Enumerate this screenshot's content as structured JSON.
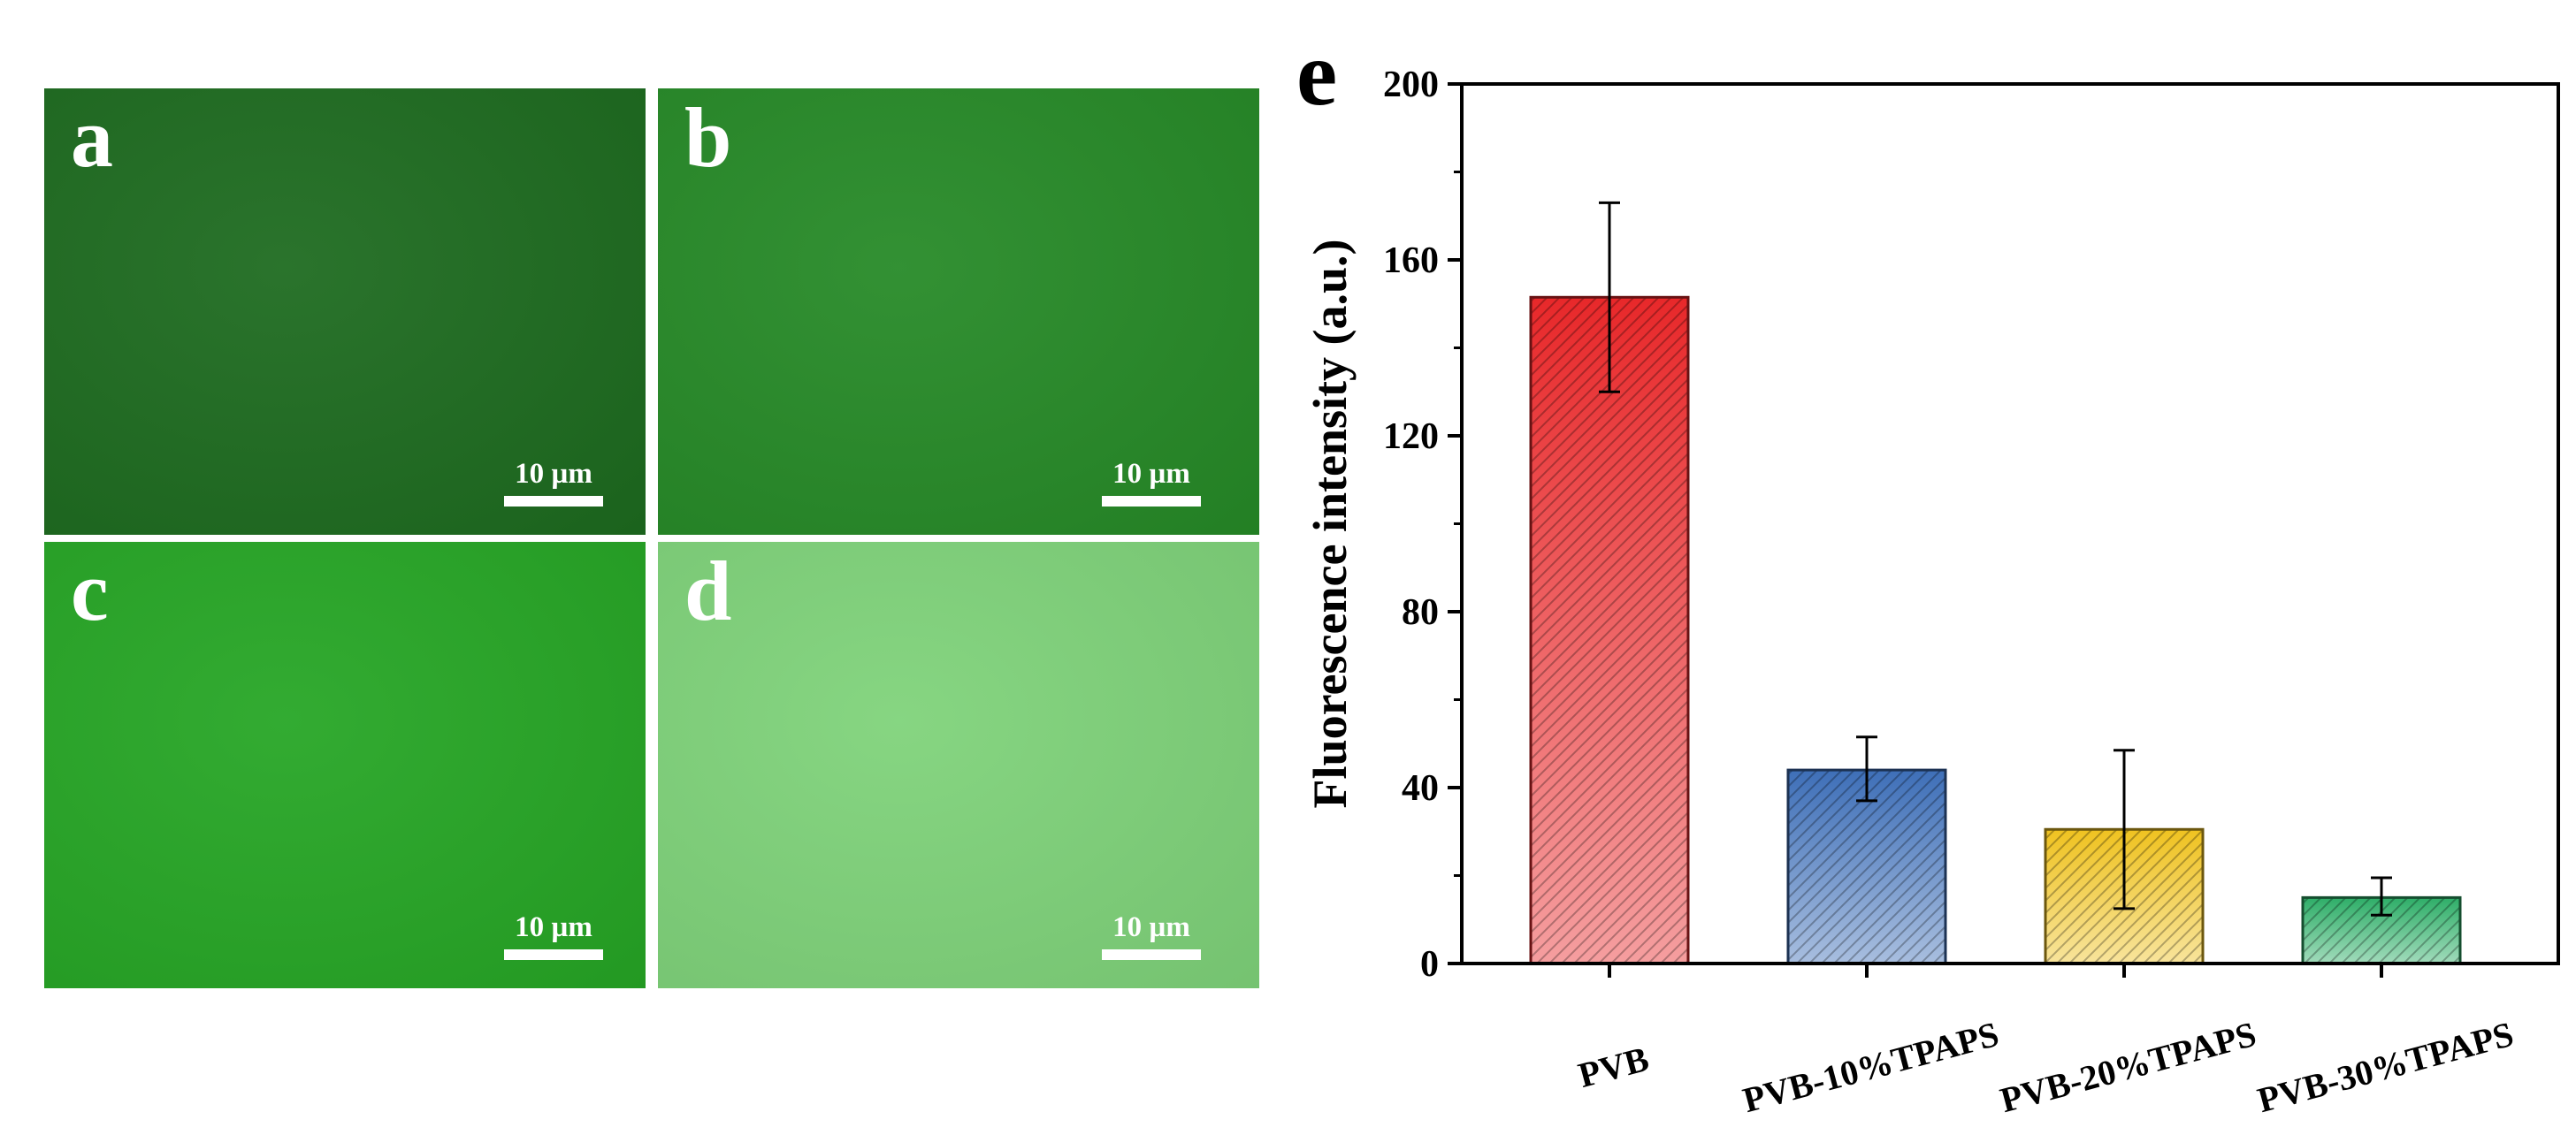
{
  "panels": [
    {
      "letter": "a",
      "scale_label": "10 µm",
      "color": "#1d6b1f"
    },
    {
      "letter": "b",
      "scale_label": "10 µm",
      "color": "#268a27"
    },
    {
      "letter": "c",
      "scale_label": "10 µm",
      "color": "#26a625"
    },
    {
      "letter": "d",
      "scale_label": "10 µm",
      "color": "#7fd37a"
    }
  ],
  "chart_data": {
    "type": "bar",
    "panel_label": "e",
    "categories": [
      "PVB",
      "PVB-10%TPAPS",
      "PVB-20%TPAPS",
      "PVB-30%TPAPS"
    ],
    "values": [
      151.5,
      44,
      30.5,
      15
    ],
    "errors_upper": [
      173,
      51.5,
      48.5,
      19.5
    ],
    "errors_lower": [
      130,
      37,
      12.5,
      11
    ],
    "colors": [
      "#e8282a",
      "#3e6fb8",
      "#efc220",
      "#2eae68"
    ],
    "ylabel": "Fluorescence intensity (a.u.)",
    "xlabel": "",
    "ylim": [
      0,
      200
    ],
    "yticks": [
      0,
      40,
      80,
      120,
      160,
      200
    ],
    "grid": false
  }
}
